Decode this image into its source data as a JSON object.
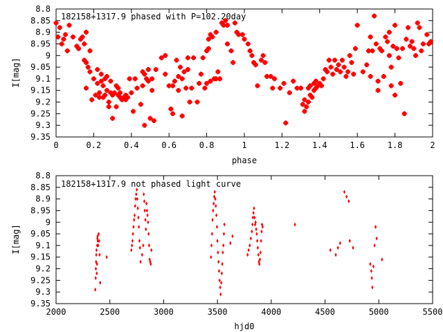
{
  "chart_data": [
    {
      "type": "scatter",
      "title": "182158+1317.9 phased with P=102.20day",
      "xlabel": "phase",
      "ylabel": "I[mag]",
      "xlim": [
        0,
        2
      ],
      "ylim": [
        8.8,
        9.35
      ],
      "y_inverted": true,
      "grid": false,
      "marker_color": "#ff0000",
      "x_ticks": [
        "0",
        "0.2",
        "0.4",
        "0.6",
        "0.8",
        "1",
        "1.2",
        "1.4",
        "1.6",
        "1.8",
        "2"
      ],
      "y_ticks": [
        "8.8",
        "8.85",
        "8.9",
        "8.95",
        "9",
        "9.05",
        "9.1",
        "9.15",
        "9.2",
        "9.25",
        "9.3",
        "9.35"
      ],
      "points": [
        [
          0.0,
          8.86
        ],
        [
          0.01,
          8.92
        ],
        [
          0.02,
          8.88
        ],
        [
          0.03,
          8.95
        ],
        [
          0.04,
          8.93
        ],
        [
          0.05,
          8.91
        ],
        [
          0.06,
          8.98
        ],
        [
          0.07,
          8.87
        ],
        [
          0.09,
          8.92
        ],
        [
          0.11,
          8.96
        ],
        [
          0.12,
          8.97
        ],
        [
          0.13,
          8.93
        ],
        [
          0.14,
          8.92
        ],
        [
          0.15,
          8.95
        ],
        [
          0.15,
          9.02
        ],
        [
          0.16,
          9.03
        ],
        [
          0.16,
          8.9
        ],
        [
          0.17,
          9.05
        ],
        [
          0.16,
          9.14
        ],
        [
          0.18,
          8.98
        ],
        [
          0.18,
          9.07
        ],
        [
          0.19,
          9.19
        ],
        [
          0.2,
          9.1
        ],
        [
          0.21,
          9.17
        ],
        [
          0.22,
          9.06
        ],
        [
          0.22,
          9.12
        ],
        [
          0.23,
          9.16
        ],
        [
          0.23,
          9.18
        ],
        [
          0.24,
          9.11
        ],
        [
          0.24,
          9.08
        ],
        [
          0.25,
          9.13
        ],
        [
          0.25,
          9.18
        ],
        [
          0.26,
          9.1
        ],
        [
          0.26,
          9.17
        ],
        [
          0.27,
          9.09
        ],
        [
          0.27,
          9.15
        ],
        [
          0.28,
          9.2
        ],
        [
          0.28,
          9.22
        ],
        [
          0.29,
          9.11
        ],
        [
          0.29,
          9.16
        ],
        [
          0.3,
          9.17
        ],
        [
          0.3,
          9.27
        ],
        [
          0.31,
          9.16
        ],
        [
          0.32,
          9.13
        ],
        [
          0.32,
          9.22
        ],
        [
          0.33,
          9.14
        ],
        [
          0.33,
          9.17
        ],
        [
          0.34,
          9.18
        ],
        [
          0.34,
          9.16
        ],
        [
          0.35,
          9.19
        ],
        [
          0.36,
          9.18
        ],
        [
          0.37,
          9.17
        ],
        [
          0.37,
          9.19
        ],
        [
          0.38,
          9.18
        ],
        [
          0.39,
          9.1
        ],
        [
          0.4,
          9.16
        ],
        [
          0.41,
          9.24
        ],
        [
          0.42,
          9.1
        ],
        [
          0.43,
          9.14
        ],
        [
          0.45,
          9.21
        ],
        [
          0.46,
          9.13
        ],
        [
          0.46,
          9.07
        ],
        [
          0.47,
          9.3
        ],
        [
          0.47,
          9.08
        ],
        [
          0.48,
          9.1
        ],
        [
          0.49,
          9.06
        ],
        [
          0.49,
          9.11
        ],
        [
          0.5,
          9.27
        ],
        [
          0.51,
          9.15
        ],
        [
          0.51,
          9.1
        ],
        [
          0.52,
          9.28
        ],
        [
          0.53,
          9.06
        ],
        [
          0.56,
          9.01
        ],
        [
          0.58,
          9.08
        ],
        [
          0.58,
          9.0
        ],
        [
          0.6,
          9.13
        ],
        [
          0.61,
          9.23
        ],
        [
          0.62,
          9.25
        ],
        [
          0.62,
          9.13
        ],
        [
          0.63,
          9.11
        ],
        [
          0.64,
          9.02
        ],
        [
          0.65,
          9.15
        ],
        [
          0.65,
          9.09
        ],
        [
          0.66,
          9.05
        ],
        [
          0.67,
          9.26
        ],
        [
          0.67,
          9.1
        ],
        [
          0.68,
          9.07
        ],
        [
          0.69,
          9.14
        ],
        [
          0.7,
          9.06
        ],
        [
          0.7,
          9.01
        ],
        [
          0.71,
          9.2
        ],
        [
          0.72,
          9.14
        ],
        [
          0.73,
          9.01
        ],
        [
          0.75,
          9.2
        ],
        [
          0.76,
          9.12
        ],
        [
          0.77,
          9.08
        ],
        [
          0.78,
          9.01
        ],
        [
          0.79,
          9.14
        ],
        [
          0.8,
          9.12
        ],
        [
          0.8,
          8.98
        ],
        [
          0.81,
          8.97
        ],
        [
          0.81,
          8.93
        ],
        [
          0.82,
          8.91
        ],
        [
          0.82,
          9.11
        ],
        [
          0.83,
          8.92
        ],
        [
          0.84,
          9.1
        ],
        [
          0.85,
          8.9
        ],
        [
          0.85,
          9.1
        ],
        [
          0.86,
          9.07
        ],
        [
          0.87,
          9.1
        ],
        [
          0.88,
          8.86
        ],
        [
          0.89,
          8.87
        ],
        [
          0.9,
          8.85
        ],
        [
          0.91,
          8.87
        ],
        [
          0.91,
          8.95
        ],
        [
          0.93,
          8.98
        ],
        [
          0.94,
          9.03
        ],
        [
          0.95,
          8.86
        ],
        [
          0.96,
          8.9
        ],
        [
          0.97,
          8.91
        ],
        [
          0.99,
          8.91
        ],
        [
          1.0,
          8.93
        ],
        [
          1.02,
          8.95
        ],
        [
          1.03,
          8.98
        ],
        [
          1.04,
          9.0
        ],
        [
          1.05,
          9.03
        ],
        [
          1.06,
          9.04
        ],
        [
          1.07,
          9.13
        ],
        [
          1.09,
          9.02
        ],
        [
          1.1,
          9.0
        ],
        [
          1.11,
          9.03
        ],
        [
          1.12,
          9.09
        ],
        [
          1.14,
          9.09
        ],
        [
          1.15,
          9.14
        ],
        [
          1.16,
          9.1
        ],
        [
          1.19,
          9.14
        ],
        [
          1.21,
          9.12
        ],
        [
          1.22,
          9.29
        ],
        [
          1.24,
          9.16
        ],
        [
          1.26,
          9.11
        ],
        [
          1.28,
          9.14
        ],
        [
          1.3,
          9.14
        ],
        [
          1.31,
          9.21
        ],
        [
          1.32,
          9.19
        ],
        [
          1.32,
          9.24
        ],
        [
          1.33,
          9.22
        ],
        [
          1.34,
          9.2
        ],
        [
          1.34,
          9.14
        ],
        [
          1.35,
          9.17
        ],
        [
          1.35,
          9.13
        ],
        [
          1.36,
          9.18
        ],
        [
          1.37,
          9.12
        ],
        [
          1.37,
          9.15
        ],
        [
          1.38,
          9.14
        ],
        [
          1.38,
          9.11
        ],
        [
          1.39,
          9.13
        ],
        [
          1.4,
          9.12
        ],
        [
          1.41,
          9.13
        ],
        [
          1.42,
          9.1
        ],
        [
          1.43,
          9.06
        ],
        [
          1.44,
          9.07
        ],
        [
          1.45,
          9.02
        ],
        [
          1.46,
          9.05
        ],
        [
          1.47,
          9.08
        ],
        [
          1.48,
          9.02
        ],
        [
          1.49,
          9.06
        ],
        [
          1.5,
          9.04
        ],
        [
          1.51,
          9.07
        ],
        [
          1.52,
          9.02
        ],
        [
          1.53,
          9.05
        ],
        [
          1.54,
          9.09
        ],
        [
          1.55,
          9.07
        ],
        [
          1.56,
          9.0
        ],
        [
          1.57,
          9.03
        ],
        [
          1.58,
          9.08
        ],
        [
          1.59,
          8.97
        ],
        [
          1.6,
          8.87
        ],
        [
          1.63,
          9.07
        ],
        [
          1.65,
          9.04
        ],
        [
          1.66,
          8.98
        ],
        [
          1.67,
          8.92
        ],
        [
          1.67,
          9.09
        ],
        [
          1.68,
          8.98
        ],
        [
          1.69,
          8.83
        ],
        [
          1.7,
          8.95
        ],
        [
          1.71,
          9.11
        ],
        [
          1.71,
          9.15
        ],
        [
          1.72,
          8.97
        ],
        [
          1.73,
          8.98
        ],
        [
          1.74,
          9.09
        ],
        [
          1.75,
          8.92
        ],
        [
          1.76,
          8.94
        ],
        [
          1.77,
          9.0
        ],
        [
          1.77,
          8.9
        ],
        [
          1.78,
          9.05
        ],
        [
          1.78,
          9.13
        ],
        [
          1.79,
          8.96
        ],
        [
          1.8,
          9.17
        ],
        [
          1.8,
          8.87
        ],
        [
          1.81,
          8.97
        ],
        [
          1.82,
          9.01
        ],
        [
          1.83,
          9.12
        ],
        [
          1.84,
          8.97
        ],
        [
          1.85,
          9.25
        ],
        [
          1.86,
          8.93
        ],
        [
          1.87,
          8.88
        ],
        [
          1.88,
          8.96
        ],
        [
          1.89,
          8.94
        ],
        [
          1.9,
          8.97
        ],
        [
          1.91,
          9.0
        ],
        [
          1.92,
          8.86
        ],
        [
          1.93,
          8.88
        ],
        [
          1.94,
          8.98
        ],
        [
          1.95,
          8.95
        ],
        [
          1.97,
          8.91
        ],
        [
          1.98,
          8.95
        ],
        [
          1.99,
          8.94
        ]
      ]
    },
    {
      "type": "scatter",
      "title": "182158+1317.9 not phased light curve",
      "xlabel": "hjd0",
      "ylabel": "I[mag]",
      "xlim": [
        2000,
        5500
      ],
      "ylim": [
        8.8,
        9.35
      ],
      "y_inverted": true,
      "grid": false,
      "marker_color": "#ff0000",
      "x_ticks": [
        "2000",
        "2500",
        "3000",
        "3500",
        "4000",
        "4500",
        "5000",
        "5500"
      ],
      "y_ticks": [
        "8.8",
        "8.85",
        "8.9",
        "8.95",
        "9",
        "9.05",
        "9.1",
        "9.15",
        "9.2",
        "9.25",
        "9.3",
        "9.35"
      ],
      "points": [
        [
          2365,
          9.29
        ],
        [
          2368,
          9.24
        ],
        [
          2370,
          9.2
        ],
        [
          2372,
          9.17
        ],
        [
          2374,
          9.14
        ],
        [
          2376,
          9.12
        ],
        [
          2378,
          9.22
        ],
        [
          2380,
          9.18
        ],
        [
          2382,
          9.1
        ],
        [
          2384,
          9.07
        ],
        [
          2386,
          9.06
        ],
        [
          2388,
          9.08
        ],
        [
          2392,
          9.1
        ],
        [
          2396,
          9.05
        ],
        [
          2400,
          9.08
        ],
        [
          2405,
          9.14
        ],
        [
          2410,
          9.26
        ],
        [
          2470,
          9.15
        ],
        [
          2700,
          9.12
        ],
        [
          2705,
          9.1
        ],
        [
          2710,
          9.08
        ],
        [
          2715,
          9.05
        ],
        [
          2720,
          9.02
        ],
        [
          2725,
          8.99
        ],
        [
          2730,
          8.97
        ],
        [
          2735,
          8.93
        ],
        [
          2740,
          8.9
        ],
        [
          2745,
          8.88
        ],
        [
          2750,
          8.86
        ],
        [
          2755,
          8.9
        ],
        [
          2760,
          8.94
        ],
        [
          2765,
          8.98
        ],
        [
          2770,
          9.02
        ],
        [
          2775,
          9.08
        ],
        [
          2780,
          9.11
        ],
        [
          2785,
          9.17
        ],
        [
          2800,
          9.14
        ],
        [
          2810,
          9.1
        ],
        [
          2815,
          8.88
        ],
        [
          2820,
          8.91
        ],
        [
          2825,
          8.95
        ],
        [
          2830,
          8.99
        ],
        [
          2835,
          9.03
        ],
        [
          2840,
          8.92
        ],
        [
          2845,
          8.95
        ],
        [
          2850,
          8.97
        ],
        [
          2855,
          9.0
        ],
        [
          2860,
          9.05
        ],
        [
          2865,
          9.1
        ],
        [
          2870,
          9.16
        ],
        [
          2875,
          9.17
        ],
        [
          2880,
          9.18
        ],
        [
          2885,
          9.12
        ],
        [
          3440,
          9.15
        ],
        [
          3445,
          9.1
        ],
        [
          3450,
          9.05
        ],
        [
          3455,
          8.99
        ],
        [
          3460,
          8.95
        ],
        [
          3465,
          8.92
        ],
        [
          3470,
          8.89
        ],
        [
          3475,
          8.87
        ],
        [
          3480,
          8.9
        ],
        [
          3485,
          8.93
        ],
        [
          3490,
          8.97
        ],
        [
          3495,
          9.02
        ],
        [
          3500,
          9.08
        ],
        [
          3505,
          9.13
        ],
        [
          3510,
          9.17
        ],
        [
          3515,
          9.21
        ],
        [
          3520,
          9.25
        ],
        [
          3525,
          9.28
        ],
        [
          3530,
          9.31
        ],
        [
          3535,
          9.26
        ],
        [
          3540,
          9.22
        ],
        [
          3545,
          9.18
        ],
        [
          3550,
          9.13
        ],
        [
          3555,
          9.1
        ],
        [
          3560,
          9.05
        ],
        [
          3565,
          9.01
        ],
        [
          3620,
          9.09
        ],
        [
          3640,
          9.06
        ],
        [
          3780,
          9.14
        ],
        [
          3790,
          9.12
        ],
        [
          3800,
          9.1
        ],
        [
          3810,
          9.07
        ],
        [
          3820,
          9.04
        ],
        [
          3825,
          9.01
        ],
        [
          3830,
          8.98
        ],
        [
          3835,
          8.96
        ],
        [
          3840,
          8.94
        ],
        [
          3845,
          8.98
        ],
        [
          3850,
          9.01
        ],
        [
          3855,
          9.0
        ],
        [
          3860,
          9.03
        ],
        [
          3865,
          9.05
        ],
        [
          3870,
          9.08
        ],
        [
          3875,
          9.11
        ],
        [
          3880,
          9.14
        ],
        [
          3885,
          9.17
        ],
        [
          3890,
          9.18
        ],
        [
          3895,
          9.16
        ],
        [
          3900,
          9.13
        ],
        [
          3905,
          9.08
        ],
        [
          3910,
          9.04
        ],
        [
          3915,
          9.01
        ],
        [
          3920,
          9.02
        ],
        [
          4220,
          9.01
        ],
        [
          4550,
          9.12
        ],
        [
          4600,
          9.14
        ],
        [
          4620,
          9.11
        ],
        [
          4640,
          9.09
        ],
        [
          4680,
          8.87
        ],
        [
          4700,
          8.89
        ],
        [
          4720,
          8.91
        ],
        [
          4760,
          9.11
        ],
        [
          4730,
          9.08
        ],
        [
          4920,
          9.18
        ],
        [
          4930,
          9.21
        ],
        [
          4935,
          9.24
        ],
        [
          4940,
          9.28
        ],
        [
          4950,
          9.19
        ],
        [
          4960,
          9.1
        ],
        [
          4970,
          9.02
        ],
        [
          4980,
          9.07
        ],
        [
          5030,
          9.16
        ]
      ]
    }
  ]
}
